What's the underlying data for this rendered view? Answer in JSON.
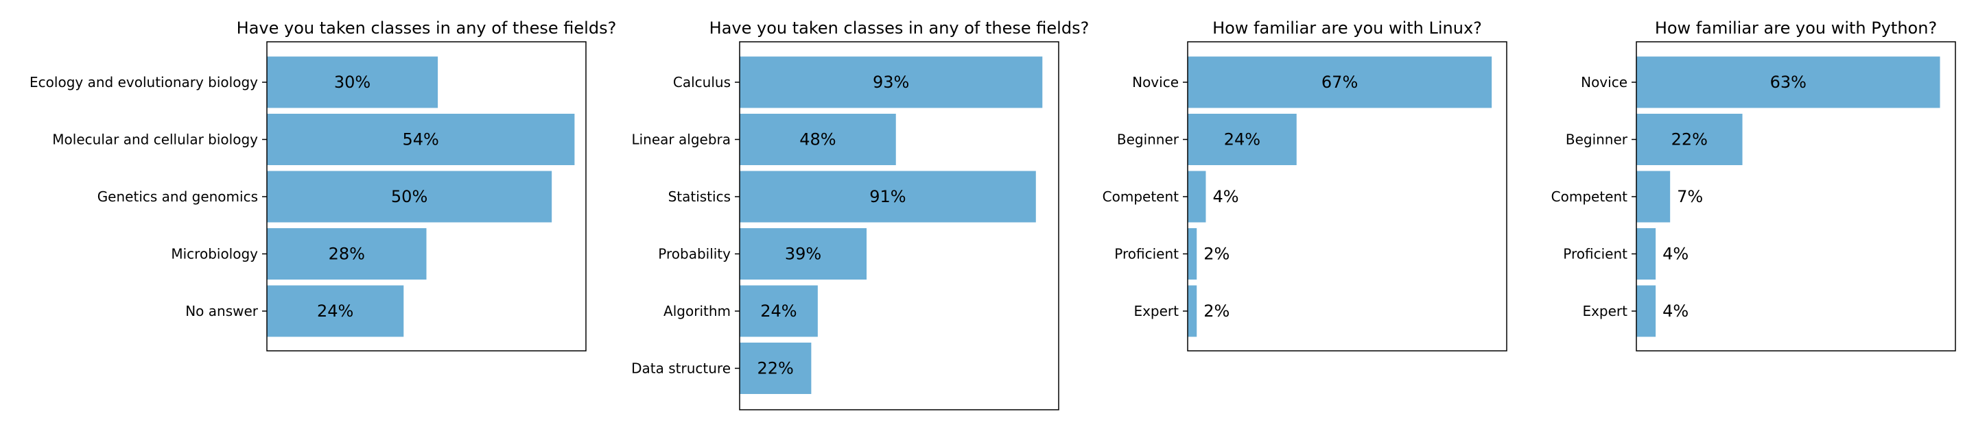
{
  "chart_data": [
    {
      "type": "bar",
      "orientation": "horizontal",
      "title": "Have you taken classes in any of these fields?",
      "categories": [
        "Ecology and evolutionary biology",
        "Molecular and cellular biology",
        "Genetics and genomics",
        "Microbiology",
        "No answer"
      ],
      "values": [
        30,
        54,
        50,
        28,
        24
      ],
      "value_labels": [
        "30%",
        "54%",
        "50%",
        "28%",
        "24%"
      ],
      "xlim": [
        0,
        56
      ],
      "color": "#6baed6"
    },
    {
      "type": "bar",
      "orientation": "horizontal",
      "title": "Have you taken classes in any of these fields?",
      "categories": [
        "Calculus",
        "Linear algebra",
        "Statistics",
        "Probability",
        "Algorithm",
        "Data structure"
      ],
      "values": [
        93,
        48,
        91,
        39,
        24,
        22
      ],
      "value_labels": [
        "93%",
        "48%",
        "91%",
        "39%",
        "24%",
        "22%"
      ],
      "xlim": [
        0,
        98
      ],
      "color": "#6baed6"
    },
    {
      "type": "bar",
      "orientation": "horizontal",
      "title": "How familiar are you with Linux?",
      "categories": [
        "Novice",
        "Beginner",
        "Competent",
        "Proficient",
        "Expert"
      ],
      "values": [
        67,
        24,
        4,
        2,
        2
      ],
      "value_labels": [
        "67%",
        "24%",
        "4%",
        "2%",
        "2%"
      ],
      "xlim": [
        0,
        70.3
      ],
      "color": "#6baed6"
    },
    {
      "type": "bar",
      "orientation": "horizontal",
      "title": "How familiar are you with Python?",
      "categories": [
        "Novice",
        "Beginner",
        "Competent",
        "Proficient",
        "Expert"
      ],
      "values": [
        63,
        22,
        7,
        4,
        4
      ],
      "value_labels": [
        "63%",
        "22%",
        "7%",
        "4%",
        "4%"
      ],
      "xlim": [
        0,
        66.2
      ],
      "color": "#6baed6"
    }
  ]
}
